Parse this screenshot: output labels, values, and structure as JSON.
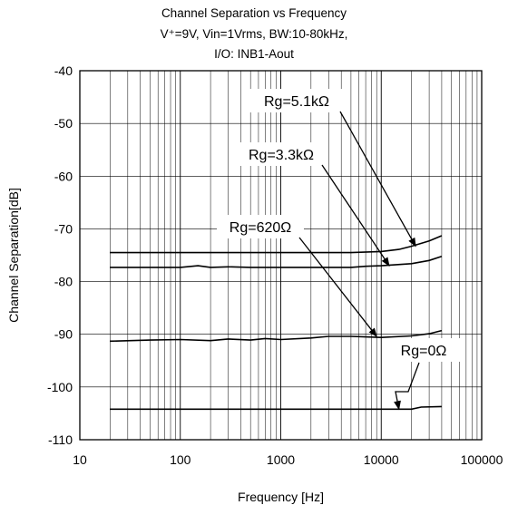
{
  "chart_data": {
    "type": "line",
    "title_lines": [
      "Channel Separation vs Frequency",
      "V⁺=9V, Vin=1Vrms, BW:10-80kHz,",
      "I/O: INB1-Aout"
    ],
    "xlabel": "Frequency [Hz]",
    "ylabel": "Channel Separation[dB]",
    "x_scale": "log",
    "xlim": [
      10,
      100000
    ],
    "ylim": [
      -110,
      -40
    ],
    "x_ticks": [
      "10",
      "100",
      "1000",
      "10000",
      "100000"
    ],
    "y_ticks": [
      "-40",
      "-50",
      "-60",
      "-70",
      "-80",
      "-90",
      "-100",
      "-110"
    ],
    "grid": true,
    "series": [
      {
        "name": "Rg=5.1kΩ",
        "x": [
          20,
          50,
          100,
          200,
          500,
          1000,
          2000,
          5000,
          10000,
          15000,
          20000,
          30000,
          40000
        ],
        "y": [
          -74.5,
          -74.5,
          -74.5,
          -74.5,
          -74.5,
          -74.5,
          -74.5,
          -74.5,
          -74.3,
          -73.9,
          -73.3,
          -72.3,
          -71.3
        ]
      },
      {
        "name": "Rg=3.3kΩ",
        "x": [
          20,
          50,
          100,
          150,
          200,
          300,
          500,
          1000,
          2000,
          5000,
          7000,
          10000,
          20000,
          30000,
          40000
        ],
        "y": [
          -77.3,
          -77.3,
          -77.3,
          -77.0,
          -77.3,
          -77.2,
          -77.3,
          -77.3,
          -77.3,
          -77.3,
          -77.1,
          -77.0,
          -76.6,
          -76.0,
          -75.2
        ]
      },
      {
        "name": "Rg=620Ω",
        "x": [
          20,
          50,
          100,
          200,
          300,
          500,
          700,
          1000,
          2000,
          3000,
          5000,
          7000,
          10000,
          20000,
          30000,
          40000
        ],
        "y": [
          -91.3,
          -91.1,
          -91.0,
          -91.2,
          -90.9,
          -91.1,
          -90.8,
          -91.0,
          -90.7,
          -90.4,
          -90.4,
          -90.5,
          -90.6,
          -90.3,
          -89.9,
          -89.3
        ]
      },
      {
        "name": "Rg=0Ω",
        "x": [
          20,
          100,
          1000,
          10000,
          20000,
          25000,
          40000
        ],
        "y": [
          -104.2,
          -104.2,
          -104.2,
          -104.2,
          -104.2,
          -103.8,
          -103.7
        ]
      }
    ],
    "annotations": [
      {
        "text": "Rg=5.1kΩ",
        "arrow_to": [
          22000,
          -73.3
        ]
      },
      {
        "text": "Rg=3.3kΩ",
        "arrow_to": [
          12000,
          -77.0
        ]
      },
      {
        "text": "Rg=620Ω",
        "arrow_to": [
          9000,
          -90.4
        ]
      },
      {
        "text": "Rg=0Ω",
        "arrow_to": [
          15000,
          -104.2
        ]
      }
    ],
    "colors": {
      "series": "#000000",
      "grid": "#000000",
      "background": "#ffffff"
    }
  }
}
